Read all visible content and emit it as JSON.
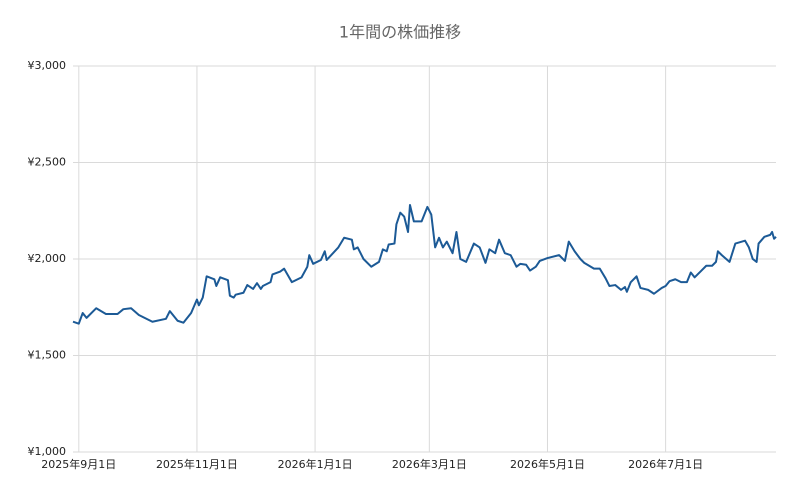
{
  "chart_data": {
    "type": "line",
    "title": "1年間の株価推移",
    "x": [
      "2025-08-29",
      "2025-09-01",
      "2025-09-03",
      "2025-09-05",
      "2025-09-10",
      "2025-09-15",
      "2025-09-21",
      "2025-09-24",
      "2025-09-28",
      "2025-10-02",
      "2025-10-09",
      "2025-10-16",
      "2025-10-18",
      "2025-10-22",
      "2025-10-25",
      "2025-10-29",
      "2025-11-01",
      "2025-11-02",
      "2025-11-04",
      "2025-11-06",
      "2025-11-10",
      "2025-11-11",
      "2025-11-13",
      "2025-11-17",
      "2025-11-18",
      "2025-11-20",
      "2025-11-21",
      "2025-11-25",
      "2025-11-27",
      "2025-11-30",
      "2025-12-02",
      "2025-12-04",
      "2025-12-05",
      "2025-12-09",
      "2025-12-10",
      "2025-12-14",
      "2025-12-16",
      "2025-12-20",
      "2025-12-25",
      "2025-12-28",
      "2025-12-29",
      "2025-12-31",
      "2026-01-04",
      "2026-01-06",
      "2026-01-07",
      "2026-01-13",
      "2026-01-16",
      "2026-01-20",
      "2026-01-21",
      "2026-01-23",
      "2026-01-26",
      "2026-01-30",
      "2026-02-03",
      "2026-02-05",
      "2026-02-07",
      "2026-02-08",
      "2026-02-11",
      "2026-02-12",
      "2026-02-14",
      "2026-02-16",
      "2026-02-18",
      "2026-02-19",
      "2026-02-21",
      "2026-02-25",
      "2026-02-28",
      "2026-03-02",
      "2026-03-04",
      "2026-03-06",
      "2026-03-08",
      "2026-03-10",
      "2026-03-13",
      "2026-03-15",
      "2026-03-17",
      "2026-03-20",
      "2026-03-24",
      "2026-03-27",
      "2026-03-30",
      "2026-04-01",
      "2026-04-04",
      "2026-04-06",
      "2026-04-09",
      "2026-04-12",
      "2026-04-15",
      "2026-04-17",
      "2026-04-20",
      "2026-04-22",
      "2026-04-25",
      "2026-04-27",
      "2026-05-01",
      "2026-05-07",
      "2026-05-10",
      "2026-05-12",
      "2026-05-15",
      "2026-05-18",
      "2026-05-20",
      "2026-05-25",
      "2026-05-28",
      "2026-05-31",
      "2026-06-02",
      "2026-06-05",
      "2026-06-08",
      "2026-06-10",
      "2026-06-11",
      "2026-06-13",
      "2026-06-16",
      "2026-06-18",
      "2026-06-22",
      "2026-06-25",
      "2026-06-29",
      "2026-07-01",
      "2026-07-03",
      "2026-07-06",
      "2026-07-09",
      "2026-07-12",
      "2026-07-14",
      "2026-07-16",
      "2026-07-19",
      "2026-07-22",
      "2026-07-25",
      "2026-07-27",
      "2026-07-28",
      "2026-07-30",
      "2026-08-03",
      "2026-08-06",
      "2026-08-11",
      "2026-08-13",
      "2026-08-15",
      "2026-08-17",
      "2026-08-18",
      "2026-08-21",
      "2026-08-24",
      "2026-08-25",
      "2026-08-26",
      "2026-08-27"
    ],
    "series": [
      {
        "color": "#1c5a96",
        "values": [
          1675,
          1665,
          1720,
          1695,
          1745,
          1715,
          1715,
          1740,
          1745,
          1710,
          1675,
          1690,
          1730,
          1680,
          1670,
          1720,
          1790,
          1760,
          1800,
          1910,
          1895,
          1860,
          1905,
          1890,
          1810,
          1800,
          1815,
          1825,
          1865,
          1845,
          1875,
          1845,
          1860,
          1880,
          1920,
          1935,
          1950,
          1880,
          1905,
          1960,
          2020,
          1975,
          1995,
          2040,
          1995,
          2060,
          2110,
          2100,
          2050,
          2060,
          2000,
          1960,
          1985,
          2050,
          2040,
          2075,
          2080,
          2180,
          2240,
          2220,
          2140,
          2280,
          2195,
          2195,
          2270,
          2230,
          2060,
          2110,
          2060,
          2090,
          2030,
          2140,
          2000,
          1985,
          2080,
          2060,
          1980,
          2050,
          2030,
          2100,
          2030,
          2020,
          1960,
          1975,
          1970,
          1940,
          1960,
          1990,
          2005,
          2020,
          1990,
          2090,
          2040,
          2000,
          1980,
          1950,
          1950,
          1900,
          1860,
          1865,
          1840,
          1855,
          1830,
          1880,
          1910,
          1850,
          1840,
          1820,
          1850,
          1860,
          1885,
          1895,
          1880,
          1880,
          1930,
          1905,
          1935,
          1965,
          1965,
          1985,
          2040,
          2020,
          1985,
          2080,
          2095,
          2060,
          2000,
          1985,
          2080,
          2115,
          2125,
          2140,
          2105,
          2115
        ]
      }
    ],
    "xlim": [
      "2025-08-29",
      "2026-08-27"
    ],
    "xticks": [
      {
        "value": "2025-09-01",
        "label": "2025年9月1日"
      },
      {
        "value": "2025-11-01",
        "label": "2025年11月1日"
      },
      {
        "value": "2026-01-01",
        "label": "2026年1月1日"
      },
      {
        "value": "2026-03-01",
        "label": "2026年3月1日"
      },
      {
        "value": "2026-05-01",
        "label": "2026年5月1日"
      },
      {
        "value": "2026-07-01",
        "label": "2026年7月1日"
      }
    ],
    "ylim": [
      1000,
      3000
    ],
    "yticks": [
      {
        "value": 1000,
        "label": "¥1,000"
      },
      {
        "value": 1500,
        "label": "¥1,500"
      },
      {
        "value": 2000,
        "label": "¥2,000"
      },
      {
        "value": 2500,
        "label": "¥2,500"
      },
      {
        "value": 3000,
        "label": "¥3,000"
      }
    ],
    "grid": true
  }
}
